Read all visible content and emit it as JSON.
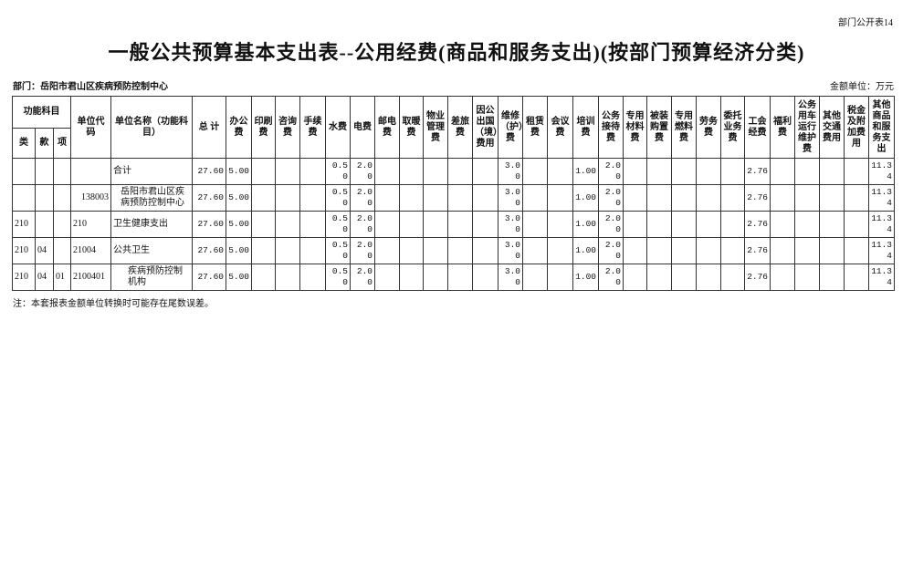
{
  "header": {
    "page_no": "部门公开表14",
    "title": "一般公共预算基本支出表--公用经费(商品和服务支出)(按部门预算经济分类)",
    "department": "部门：岳阳市君山区疾病预防控制中心",
    "unit": "金额单位：万元"
  },
  "table": {
    "group_header": "功能科目",
    "columns": [
      "类",
      "款",
      "项",
      "单位代码",
      "单位名称（功能科目）",
      "总 计",
      "办公费",
      "印刷费",
      "咨询费",
      "手续费",
      "水费",
      "电费",
      "邮电费",
      "取暖费",
      "物业管理费",
      "差旅费",
      "因公出国（境）费用",
      "维修（护）费",
      "租赁费",
      "会议费",
      "培训费",
      "公务接待费",
      "专用材料费",
      "被装购置费",
      "专用燃料费",
      "劳务费",
      "委托业务费",
      "工会经费",
      "福利费",
      "公务用车运行维护费",
      "其他交通费用",
      "税金及附加费用",
      "其他商品和服务支出"
    ],
    "rows": [
      [
        null,
        null,
        null,
        null,
        "合计",
        "27.60",
        "5.00",
        null,
        null,
        null,
        "0.50",
        "2.00",
        null,
        null,
        null,
        null,
        null,
        "3.00",
        null,
        null,
        "1.00",
        "2.00",
        null,
        null,
        null,
        null,
        null,
        "2.76",
        null,
        null,
        null,
        null,
        "11.34"
      ],
      [
        null,
        null,
        null,
        "138003",
        "岳阳市君山区疾病预防控制中心",
        "27.60",
        "5.00",
        null,
        null,
        null,
        "0.50",
        "2.00",
        null,
        null,
        null,
        null,
        null,
        "3.00",
        null,
        null,
        "1.00",
        "2.00",
        null,
        null,
        null,
        null,
        null,
        "2.76",
        null,
        null,
        null,
        null,
        "11.34"
      ],
      [
        "210",
        null,
        null,
        "210",
        "卫生健康支出",
        "27.60",
        "5.00",
        null,
        null,
        null,
        "0.50",
        "2.00",
        null,
        null,
        null,
        null,
        null,
        "3.00",
        null,
        null,
        "1.00",
        "2.00",
        null,
        null,
        null,
        null,
        null,
        "2.76",
        null,
        null,
        null,
        null,
        "11.34"
      ],
      [
        "210",
        "04",
        null,
        "21004",
        "公共卫生",
        "27.60",
        "5.00",
        null,
        null,
        null,
        "0.50",
        "2.00",
        null,
        null,
        null,
        null,
        null,
        "3.00",
        null,
        null,
        "1.00",
        "2.00",
        null,
        null,
        null,
        null,
        null,
        "2.76",
        null,
        null,
        null,
        null,
        "11.34"
      ],
      [
        "210",
        "04",
        "01",
        "2100401",
        "疾病预防控制机构",
        "27.60",
        "5.00",
        null,
        null,
        null,
        "0.50",
        "2.00",
        null,
        null,
        null,
        null,
        null,
        "3.00",
        null,
        null,
        "1.00",
        "2.00",
        null,
        null,
        null,
        null,
        null,
        "2.76",
        null,
        null,
        null,
        null,
        "11.34"
      ]
    ]
  },
  "footer": {
    "note": "注：本套报表金额单位转换时可能存在尾数误差。"
  }
}
